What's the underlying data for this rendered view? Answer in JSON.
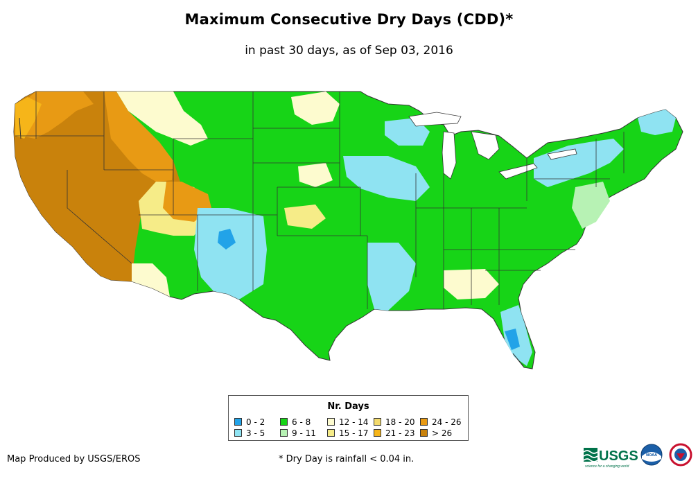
{
  "title": "Maximum Consecutive Dry Days (CDD)*",
  "subtitle": "in past 30 days, as of Sep 03, 2016",
  "legend": {
    "title": "Nr. Days",
    "items": [
      {
        "label": "0 - 2",
        "color": "#22a3e8"
      },
      {
        "label": "3 - 5",
        "color": "#8fe3f2"
      },
      {
        "label": "6 - 8",
        "color": "#17d417"
      },
      {
        "label": "9 - 11",
        "color": "#b7f2b4"
      },
      {
        "label": "12 - 14",
        "color": "#fdfbcf"
      },
      {
        "label": "15 - 17",
        "color": "#f6ec88"
      },
      {
        "label": "18 - 20",
        "color": "#f3da6c"
      },
      {
        "label": "21 - 23",
        "color": "#f6b519"
      },
      {
        "label": "24 - 26",
        "color": "#e89a14"
      },
      {
        "label": "> 26",
        "color": "#c9820c"
      }
    ]
  },
  "credit": "Map Produced by USGS/EROS",
  "footnote": "* Dry Day is rainfall < 0.04 in.",
  "logos": {
    "usgs": "USGS",
    "usgs_tagline": "science for a changing world",
    "noaa": "NOAA"
  }
}
